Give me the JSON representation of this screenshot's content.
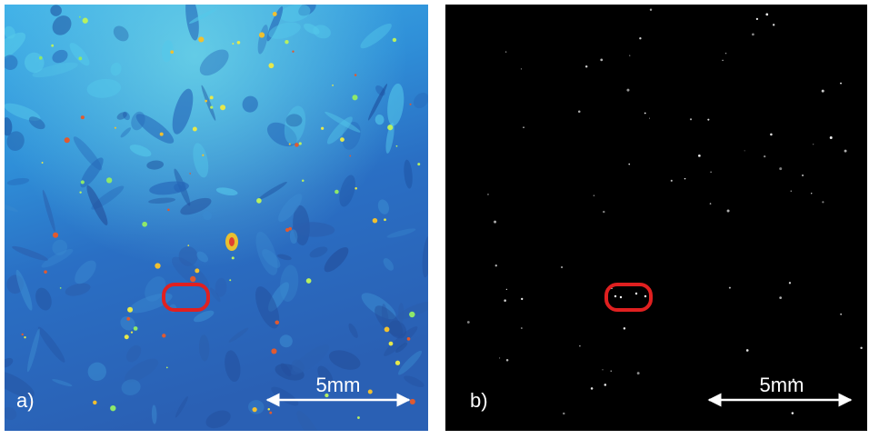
{
  "panels": [
    {
      "label": "a)",
      "scale": "5mm"
    },
    {
      "label": "b)",
      "scale": "5mm"
    }
  ]
}
